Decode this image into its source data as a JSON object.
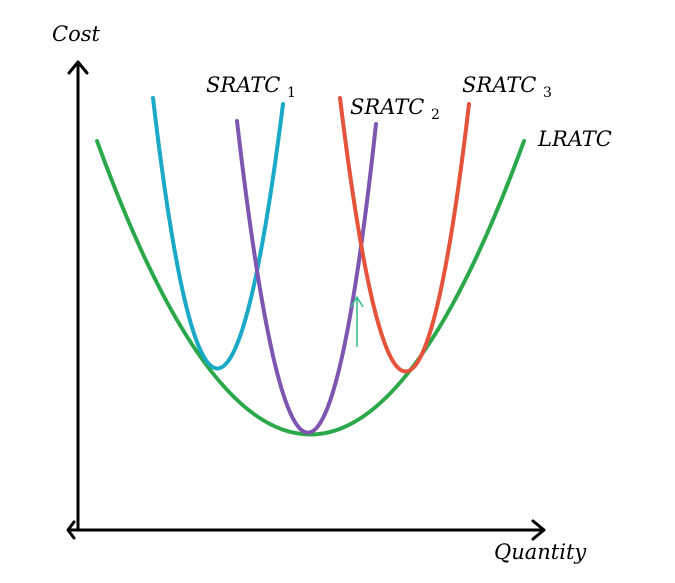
{
  "axes": {
    "y_label": "Cost",
    "x_label": "Quantity"
  },
  "curves": [
    {
      "key": "lratc",
      "label": "LRATC",
      "subscript": "",
      "color": "#2aa84a"
    },
    {
      "key": "sratc1",
      "label": "SRATC",
      "subscript": "1",
      "color": "#1aa9c6"
    },
    {
      "key": "sratc2",
      "label": "SRATC",
      "subscript": "2",
      "color": "#7e56b0"
    },
    {
      "key": "sratc3",
      "label": "SRATC",
      "subscript": "3",
      "color": "#e5533d"
    }
  ],
  "annotations": {
    "arrow_color": "#3cc28e"
  }
}
